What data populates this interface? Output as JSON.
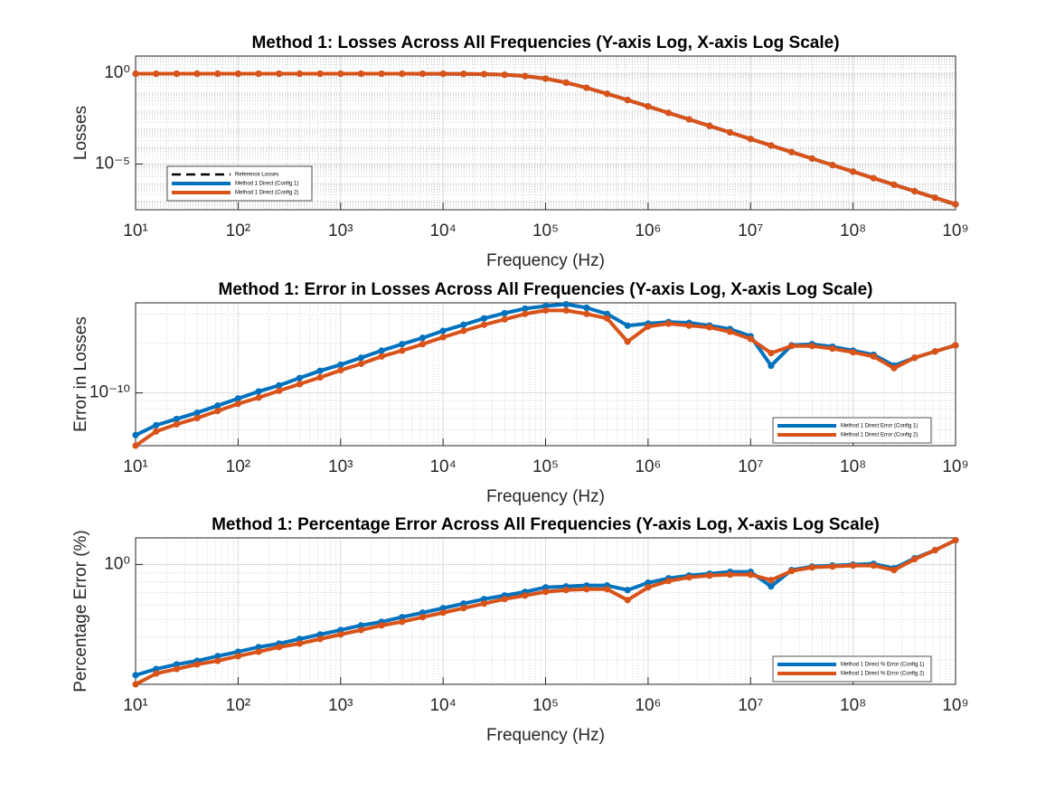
{
  "chart_data": [
    {
      "type": "line",
      "title": "Method 1: Losses Across All Frequencies (Y-axis Log, X-axis Log Scale)",
      "xlabel": "Frequency (Hz)",
      "ylabel": "Losses",
      "xscale": "log",
      "yscale": "log",
      "grid": true,
      "minor_grid": true,
      "legend": "lower left",
      "x": [
        10,
        15.85,
        25.12,
        39.81,
        63.1,
        100,
        158.5,
        251.2,
        398.1,
        631,
        1000,
        1585,
        2512,
        3981,
        6310,
        10000,
        15849,
        25119,
        39811,
        63096,
        100000,
        158489,
        251189,
        398107,
        630957,
        1000000,
        1584893,
        2511886,
        3981072,
        6309573,
        10000000,
        15848932,
        25118864,
        39810717,
        63095734,
        100000000,
        158489319,
        251188643,
        398107171,
        630957344,
        1000000000
      ],
      "xlim": [
        10,
        1000000000
      ],
      "xticks": [
        {
          "value": 10,
          "label": "10¹"
        },
        {
          "value": 100,
          "label": "10²"
        },
        {
          "value": 1000,
          "label": "10³"
        },
        {
          "value": 10000,
          "label": "10⁴"
        },
        {
          "value": 100000,
          "label": "10⁵"
        },
        {
          "value": 1000000,
          "label": "10⁶"
        },
        {
          "value": 10000000,
          "label": "10⁷"
        },
        {
          "value": 100000000,
          "label": "10⁸"
        },
        {
          "value": 1000000000,
          "label": "10⁹"
        }
      ],
      "ylim": [
        3e-08,
        9
      ],
      "yticks": [
        {
          "value": 1,
          "label": "10⁰"
        },
        {
          "value": 1e-05,
          "label": "10⁻⁵"
        }
      ],
      "series": [
        {
          "name": "Reference Losses",
          "color": "#000000",
          "linestyle": "--",
          "marker": "none",
          "values": [
            0.955,
            0.955,
            0.955,
            0.955,
            0.955,
            0.955,
            0.955,
            0.955,
            0.955,
            0.955,
            0.955,
            0.955,
            0.954,
            0.953,
            0.95,
            0.946,
            0.934,
            0.904,
            0.838,
            0.706,
            0.512,
            0.308,
            0.1595,
            0.0752,
            0.0339,
            0.015,
            0.00658,
            0.00288,
            0.00126,
            0.00055,
            0.00024,
            0.000105,
            4.57e-05,
            2e-05,
            8.7e-06,
            3.8e-06,
            1.66e-06,
            7.2e-07,
            3.16e-07,
            1.3e-07,
            5.2e-08
          ]
        },
        {
          "name": "Method 1 Direct (Config 1)",
          "color": "#0072BD",
          "linestyle": "-",
          "marker": "o",
          "values": [
            0.955,
            0.955,
            0.955,
            0.955,
            0.955,
            0.955,
            0.955,
            0.955,
            0.955,
            0.955,
            0.955,
            0.955,
            0.954,
            0.953,
            0.95,
            0.946,
            0.934,
            0.904,
            0.838,
            0.706,
            0.512,
            0.308,
            0.1595,
            0.0752,
            0.0339,
            0.015,
            0.00658,
            0.00288,
            0.00126,
            0.00055,
            0.00024,
            0.000105,
            4.57e-05,
            2e-05,
            8.7e-06,
            3.8e-06,
            1.66e-06,
            7.2e-07,
            3.16e-07,
            1.38e-07,
            6e-08
          ]
        },
        {
          "name": "Method 1 Direct (Config 2)",
          "color": "#D95319",
          "linestyle": "-",
          "marker": "o",
          "values": [
            0.955,
            0.955,
            0.955,
            0.955,
            0.955,
            0.955,
            0.955,
            0.955,
            0.955,
            0.955,
            0.955,
            0.955,
            0.954,
            0.953,
            0.95,
            0.946,
            0.934,
            0.904,
            0.838,
            0.706,
            0.512,
            0.308,
            0.1595,
            0.0752,
            0.0339,
            0.015,
            0.00658,
            0.00288,
            0.00126,
            0.00055,
            0.00024,
            0.000105,
            4.57e-05,
            2e-05,
            8.7e-06,
            3.8e-06,
            1.66e-06,
            7.2e-07,
            3.16e-07,
            1.38e-07,
            6e-08
          ]
        }
      ]
    },
    {
      "type": "line",
      "title": "Method 1: Error in Losses Across All Frequencies (Y-axis Log, X-axis Log Scale)",
      "xlabel": "Frequency (Hz)",
      "ylabel": "Error in Losses",
      "xscale": "log",
      "yscale": "log",
      "grid": true,
      "minor_grid": true,
      "legend": "lower right",
      "x": [
        10,
        15.85,
        25.12,
        39.81,
        63.1,
        100,
        158.5,
        251.2,
        398.1,
        631,
        1000,
        1585,
        2512,
        3981,
        6310,
        10000,
        15849,
        25119,
        39811,
        63096,
        100000,
        158489,
        251189,
        398107,
        630957,
        1000000,
        1584893,
        2511886,
        3981072,
        6309573,
        10000000,
        15848932,
        25118864,
        39810717,
        63095734,
        100000000,
        158489319,
        251188643,
        398107171,
        630957344,
        1000000000
      ],
      "xlim": [
        10,
        1000000000
      ],
      "xticks": [
        {
          "value": 10,
          "label": "10¹"
        },
        {
          "value": 100,
          "label": "10²"
        },
        {
          "value": 1000,
          "label": "10³"
        },
        {
          "value": 10000,
          "label": "10⁴"
        },
        {
          "value": 100000,
          "label": "10⁵"
        },
        {
          "value": 1000000,
          "label": "10⁶"
        },
        {
          "value": 10000000,
          "label": "10⁷"
        },
        {
          "value": 100000000,
          "label": "10⁸"
        },
        {
          "value": 1000000000,
          "label": "10⁹"
        }
      ],
      "ylim": [
        4.8e-11,
        3.5e-10
      ],
      "yticks": [
        {
          "value": 1e-10,
          "label": "10⁻¹⁰"
        }
      ],
      "series": [
        {
          "name": "Method 1 Direct Error (Config 1)",
          "color": "#0072BD",
          "linestyle": "-",
          "marker": "o",
          "values": [
            5.56e-11,
            6.38e-11,
            6.96e-11,
            7.59e-11,
            8.38e-11,
            9.25e-11,
            1.02e-10,
            1.11e-10,
            1.23e-10,
            1.36e-10,
            1.48e-10,
            1.63e-10,
            1.8e-10,
            1.97e-10,
            2.15e-10,
            2.37e-10,
            2.58e-10,
            2.82e-10,
            3.03e-10,
            3.23e-10,
            3.35e-10,
            3.43e-10,
            3.27e-10,
            3e-10,
            2.55e-10,
            2.62e-10,
            2.68e-10,
            2.65e-10,
            2.55e-10,
            2.43e-10,
            2.2e-10,
            1.46e-10,
            1.94e-10,
            1.97e-10,
            1.9e-10,
            1.8e-10,
            1.7e-10,
            1.46e-10,
            1.63e-10,
            1.78e-10,
            1.94e-10
          ]
        },
        {
          "name": "Method 1 Direct Error (Config 2)",
          "color": "#D95319",
          "linestyle": "-",
          "marker": "o",
          "values": [
            4.8e-11,
            5.85e-11,
            6.46e-11,
            7.04e-11,
            7.78e-11,
            8.59e-11,
            9.36e-11,
            1.03e-10,
            1.13e-10,
            1.24e-10,
            1.37e-10,
            1.5e-10,
            1.66e-10,
            1.8e-10,
            1.97e-10,
            2.17e-10,
            2.37e-10,
            2.58e-10,
            2.78e-10,
            3e-10,
            3.15e-10,
            3.15e-10,
            3e-10,
            2.82e-10,
            2.04e-10,
            2.52e-10,
            2.62e-10,
            2.55e-10,
            2.49e-10,
            2.34e-10,
            2.12e-10,
            1.74e-10,
            1.92e-10,
            1.92e-10,
            1.85e-10,
            1.76e-10,
            1.66e-10,
            1.41e-10,
            1.63e-10,
            1.78e-10,
            1.94e-10
          ]
        }
      ]
    },
    {
      "type": "line",
      "title": "Method 1: Percentage Error Across All Frequencies (Y-axis Log, X-axis Log Scale)",
      "xlabel": "Frequency (Hz)",
      "ylabel": "Percentage Error (%)",
      "xscale": "log",
      "yscale": "log",
      "grid": true,
      "minor_grid": true,
      "legend": "lower right",
      "x": [
        10,
        15.85,
        25.12,
        39.81,
        63.1,
        100,
        158.5,
        251.2,
        398.1,
        631,
        1000,
        1585,
        2512,
        3981,
        6310,
        10000,
        15849,
        25119,
        39811,
        63096,
        100000,
        158489,
        251189,
        398107,
        630957,
        1000000,
        1584893,
        2511886,
        3981072,
        6309573,
        10000000,
        15848932,
        25118864,
        39810717,
        63095734,
        100000000,
        158489319,
        251188643,
        398107171,
        630957344,
        1000000000
      ],
      "xlim": [
        10,
        1000000000
      ],
      "xticks": [
        {
          "value": 10,
          "label": "10¹"
        },
        {
          "value": 100,
          "label": "10²"
        },
        {
          "value": 1000,
          "label": "10³"
        },
        {
          "value": 10000,
          "label": "10⁴"
        },
        {
          "value": 100000,
          "label": "10⁵"
        },
        {
          "value": 1000000,
          "label": "10⁶"
        },
        {
          "value": 10000000,
          "label": "10⁷"
        },
        {
          "value": 100000000,
          "label": "10⁸"
        },
        {
          "value": 1000000000,
          "label": "10⁹"
        }
      ],
      "ylim": [
        0.22,
        1.4
      ],
      "yticks": [
        {
          "value": 1,
          "label": "10⁰"
        }
      ],
      "series": [
        {
          "name": "Method 1 Direct % Error (Config 1)",
          "color": "#0072BD",
          "linestyle": "-",
          "marker": "o",
          "values": [
            0.247,
            0.267,
            0.283,
            0.296,
            0.314,
            0.332,
            0.352,
            0.368,
            0.39,
            0.413,
            0.437,
            0.463,
            0.485,
            0.514,
            0.544,
            0.576,
            0.61,
            0.646,
            0.676,
            0.708,
            0.749,
            0.758,
            0.767,
            0.767,
            0.724,
            0.794,
            0.84,
            0.87,
            0.89,
            0.911,
            0.911,
            0.758,
            0.932,
            0.975,
            0.987,
            0.998,
            1.009,
            0.953,
            1.081,
            1.198,
            1.36
          ]
        },
        {
          "name": "Method 1 Direct % Error (Config 2)",
          "color": "#D95319",
          "linestyle": "-",
          "marker": "o",
          "values": [
            0.22,
            0.252,
            0.267,
            0.283,
            0.296,
            0.314,
            0.332,
            0.352,
            0.368,
            0.39,
            0.413,
            0.437,
            0.463,
            0.485,
            0.514,
            0.544,
            0.576,
            0.61,
            0.646,
            0.676,
            0.708,
            0.724,
            0.732,
            0.732,
            0.638,
            0.749,
            0.812,
            0.85,
            0.87,
            0.88,
            0.88,
            0.821,
            0.921,
            0.964,
            0.975,
            0.987,
            0.987,
            0.932,
            1.069,
            1.198,
            1.36
          ]
        }
      ]
    }
  ]
}
